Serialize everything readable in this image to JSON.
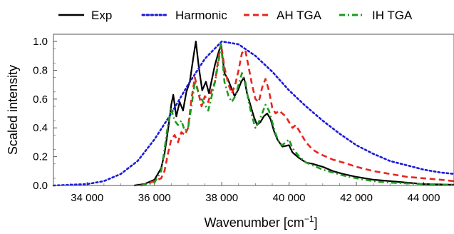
{
  "chart_data": {
    "type": "line",
    "xlabel": "Wavenumber [cm",
    "xlabel_unit_exponent": "−1",
    "xlabel_close": "]",
    "ylabel": "Scaled intensity",
    "xlim": [
      33000,
      44900
    ],
    "ylim": [
      0,
      1.05
    ],
    "x_ticks": [
      34000,
      36000,
      38000,
      40000,
      42000,
      44000
    ],
    "x_tick_labels": [
      "34 000",
      "36 000",
      "38 000",
      "40 000",
      "42 000",
      "44 000"
    ],
    "y_ticks": [
      0.0,
      0.2,
      0.4,
      0.6,
      0.8,
      1.0
    ],
    "y_tick_labels": [
      "0.0",
      "0.2",
      "0.4",
      "0.6",
      "0.8",
      "1.0"
    ],
    "grid": false,
    "legend_position": "top",
    "series": [
      {
        "name": "Exp",
        "color": "#000000",
        "dash": "solid",
        "points": [
          [
            35400,
            0.0
          ],
          [
            35700,
            0.01
          ],
          [
            36000,
            0.04
          ],
          [
            36200,
            0.12
          ],
          [
            36300,
            0.22
          ],
          [
            36400,
            0.38
          ],
          [
            36500,
            0.56
          ],
          [
            36560,
            0.63
          ],
          [
            36650,
            0.48
          ],
          [
            36750,
            0.58
          ],
          [
            36850,
            0.52
          ],
          [
            36950,
            0.65
          ],
          [
            37050,
            0.72
          ],
          [
            37150,
            0.88
          ],
          [
            37230,
            1.0
          ],
          [
            37320,
            0.82
          ],
          [
            37420,
            0.66
          ],
          [
            37530,
            0.72
          ],
          [
            37620,
            0.64
          ],
          [
            37720,
            0.75
          ],
          [
            37800,
            0.84
          ],
          [
            37900,
            0.92
          ],
          [
            37980,
            0.98
          ],
          [
            38080,
            0.78
          ],
          [
            38180,
            0.74
          ],
          [
            38280,
            0.68
          ],
          [
            38380,
            0.62
          ],
          [
            38480,
            0.66
          ],
          [
            38580,
            0.72
          ],
          [
            38660,
            0.75
          ],
          [
            38750,
            0.64
          ],
          [
            38850,
            0.56
          ],
          [
            38950,
            0.48
          ],
          [
            39050,
            0.42
          ],
          [
            39150,
            0.44
          ],
          [
            39250,
            0.48
          ],
          [
            39350,
            0.5
          ],
          [
            39450,
            0.46
          ],
          [
            39550,
            0.38
          ],
          [
            39650,
            0.32
          ],
          [
            39800,
            0.27
          ],
          [
            40000,
            0.28
          ],
          [
            40100,
            0.23
          ],
          [
            40300,
            0.19
          ],
          [
            40500,
            0.16
          ],
          [
            40700,
            0.15
          ],
          [
            41000,
            0.13
          ],
          [
            41300,
            0.1
          ],
          [
            41600,
            0.08
          ],
          [
            42000,
            0.06
          ],
          [
            42500,
            0.04
          ],
          [
            43000,
            0.03
          ],
          [
            43500,
            0.02
          ],
          [
            44000,
            0.01
          ],
          [
            44900,
            0.005
          ]
        ]
      },
      {
        "name": "Harmonic",
        "color": "#1a1adb",
        "dash": "dotted",
        "points": [
          [
            33000,
            0.0
          ],
          [
            34000,
            0.01
          ],
          [
            34500,
            0.03
          ],
          [
            35000,
            0.08
          ],
          [
            35500,
            0.17
          ],
          [
            36000,
            0.32
          ],
          [
            36500,
            0.5
          ],
          [
            37000,
            0.7
          ],
          [
            37500,
            0.88
          ],
          [
            38000,
            1.0
          ],
          [
            38500,
            0.98
          ],
          [
            39000,
            0.9
          ],
          [
            39500,
            0.79
          ],
          [
            40000,
            0.66
          ],
          [
            40500,
            0.55
          ],
          [
            41000,
            0.45
          ],
          [
            41500,
            0.36
          ],
          [
            42000,
            0.28
          ],
          [
            42500,
            0.22
          ],
          [
            43000,
            0.17
          ],
          [
            43500,
            0.14
          ],
          [
            44000,
            0.11
          ],
          [
            44500,
            0.09
          ],
          [
            44900,
            0.08
          ]
        ]
      },
      {
        "name": "AH TGA",
        "color": "#e8251e",
        "dash": "dashed",
        "points": [
          [
            35600,
            0.0
          ],
          [
            36000,
            0.03
          ],
          [
            36200,
            0.05
          ],
          [
            36300,
            0.1
          ],
          [
            36400,
            0.22
          ],
          [
            36500,
            0.32
          ],
          [
            36600,
            0.35
          ],
          [
            36700,
            0.3
          ],
          [
            36800,
            0.37
          ],
          [
            36900,
            0.35
          ],
          [
            37000,
            0.4
          ],
          [
            37100,
            0.6
          ],
          [
            37200,
            0.75
          ],
          [
            37300,
            0.65
          ],
          [
            37400,
            0.55
          ],
          [
            37500,
            0.62
          ],
          [
            37600,
            0.58
          ],
          [
            37700,
            0.66
          ],
          [
            37800,
            0.72
          ],
          [
            37900,
            0.88
          ],
          [
            37980,
            0.98
          ],
          [
            38080,
            0.82
          ],
          [
            38200,
            0.7
          ],
          [
            38300,
            0.64
          ],
          [
            38400,
            0.7
          ],
          [
            38500,
            0.8
          ],
          [
            38600,
            0.92
          ],
          [
            38700,
            0.94
          ],
          [
            38800,
            0.82
          ],
          [
            38900,
            0.7
          ],
          [
            39000,
            0.6
          ],
          [
            39100,
            0.58
          ],
          [
            39200,
            0.68
          ],
          [
            39300,
            0.74
          ],
          [
            39400,
            0.66
          ],
          [
            39500,
            0.54
          ],
          [
            39600,
            0.5
          ],
          [
            39700,
            0.52
          ],
          [
            39800,
            0.5
          ],
          [
            39900,
            0.48
          ],
          [
            40000,
            0.44
          ],
          [
            40100,
            0.4
          ],
          [
            40200,
            0.42
          ],
          [
            40300,
            0.38
          ],
          [
            40500,
            0.3
          ],
          [
            40700,
            0.25
          ],
          [
            40900,
            0.22
          ],
          [
            41100,
            0.2
          ],
          [
            41300,
            0.18
          ],
          [
            41600,
            0.16
          ],
          [
            42000,
            0.13
          ],
          [
            42500,
            0.1
          ],
          [
            43000,
            0.08
          ],
          [
            43500,
            0.06
          ],
          [
            44000,
            0.05
          ],
          [
            44500,
            0.04
          ],
          [
            44900,
            0.03
          ]
        ]
      },
      {
        "name": "IH TGA",
        "color": "#1f9a1f",
        "dash": "dashdot",
        "points": [
          [
            35600,
            0.0
          ],
          [
            36000,
            0.02
          ],
          [
            36200,
            0.1
          ],
          [
            36300,
            0.25
          ],
          [
            36400,
            0.42
          ],
          [
            36500,
            0.53
          ],
          [
            36600,
            0.45
          ],
          [
            36700,
            0.42
          ],
          [
            36800,
            0.45
          ],
          [
            36900,
            0.38
          ],
          [
            37000,
            0.4
          ],
          [
            37100,
            0.55
          ],
          [
            37200,
            0.72
          ],
          [
            37300,
            0.65
          ],
          [
            37400,
            0.6
          ],
          [
            37500,
            0.56
          ],
          [
            37600,
            0.52
          ],
          [
            37700,
            0.62
          ],
          [
            37800,
            0.72
          ],
          [
            37900,
            0.85
          ],
          [
            37980,
            0.98
          ],
          [
            38080,
            0.72
          ],
          [
            38200,
            0.62
          ],
          [
            38300,
            0.58
          ],
          [
            38400,
            0.62
          ],
          [
            38500,
            0.7
          ],
          [
            38600,
            0.78
          ],
          [
            38700,
            0.72
          ],
          [
            38800,
            0.58
          ],
          [
            38900,
            0.48
          ],
          [
            39000,
            0.4
          ],
          [
            39100,
            0.44
          ],
          [
            39200,
            0.5
          ],
          [
            39300,
            0.56
          ],
          [
            39400,
            0.52
          ],
          [
            39500,
            0.44
          ],
          [
            39600,
            0.36
          ],
          [
            39700,
            0.3
          ],
          [
            39800,
            0.28
          ],
          [
            39900,
            0.3
          ],
          [
            40000,
            0.32
          ],
          [
            40100,
            0.26
          ],
          [
            40300,
            0.2
          ],
          [
            40500,
            0.16
          ],
          [
            40700,
            0.14
          ],
          [
            41000,
            0.11
          ],
          [
            41300,
            0.09
          ],
          [
            41600,
            0.07
          ],
          [
            42000,
            0.05
          ],
          [
            42500,
            0.03
          ],
          [
            43000,
            0.02
          ],
          [
            43500,
            0.015
          ],
          [
            44000,
            0.01
          ],
          [
            44900,
            0.005
          ]
        ]
      }
    ]
  }
}
